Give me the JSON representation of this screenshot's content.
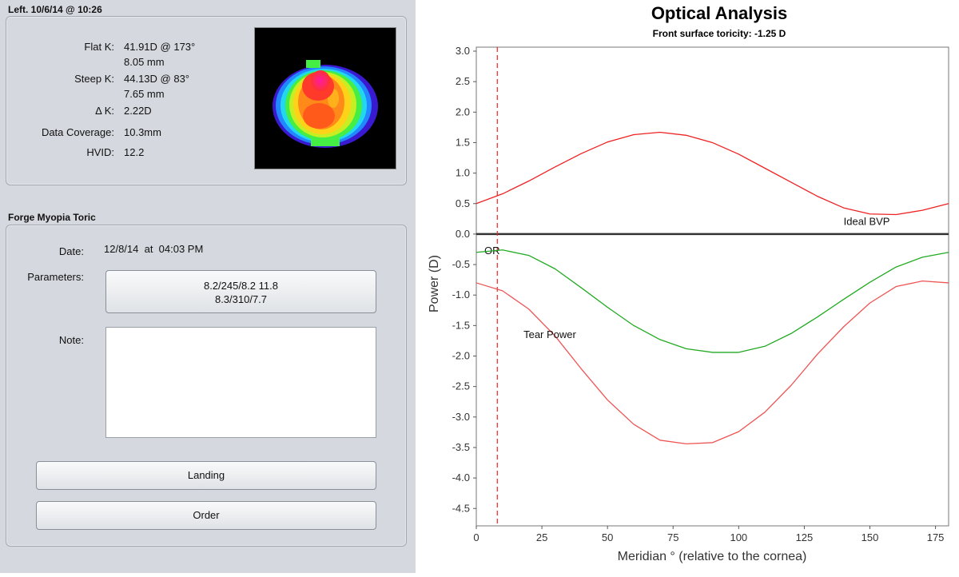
{
  "keratometry": {
    "title": "Left. 10/6/14 @ 10:26",
    "flat_k_label": "Flat K:",
    "flat_k_value": "41.91D @ 173°",
    "flat_k_mm": "8.05 mm",
    "steep_k_label": "Steep K:",
    "steep_k_value": "44.13D @ 83°",
    "steep_k_mm": "7.65 mm",
    "delta_k_label": "Δ K:",
    "delta_k_value": "2.22D",
    "coverage_label": "Data Coverage:",
    "coverage_value": "10.3mm",
    "hvid_label": "HVID:",
    "hvid_value": "12.2"
  },
  "lens": {
    "title": "Forge Myopia Toric",
    "date_label": "Date:",
    "date_value": "12/8/14  at  04:03 PM",
    "parameters_label": "Parameters:",
    "parameters_line1": "8.2/245/8.2 11.8",
    "parameters_line2": "8.3/310/7.7",
    "note_label": "Note:",
    "note_value": "",
    "landing_button": "Landing",
    "order_button": "Order"
  },
  "chart_data": {
    "type": "line",
    "title": "Optical Analysis",
    "subtitle": "Front surface toricity: -1.25 D",
    "xlabel": "Meridian ° (relative to the cornea)",
    "ylabel": "Power (D)",
    "xlim": [
      0,
      180
    ],
    "ylim": [
      -4.75,
      3.0
    ],
    "xticks": [
      0,
      25,
      50,
      75,
      100,
      125,
      150,
      175
    ],
    "yticks": [
      3.0,
      2.5,
      2.0,
      1.5,
      1.0,
      0.5,
      0.0,
      -0.5,
      -1.0,
      -1.5,
      -2.0,
      -2.5,
      -3.0,
      -3.5,
      -4.0,
      -4.5
    ],
    "grid": false,
    "or_meridian": 8,
    "or_label": "OR",
    "series": [
      {
        "name": "Ideal BVP",
        "color": "#ee2222",
        "x": [
          0,
          10,
          20,
          30,
          40,
          50,
          60,
          70,
          80,
          90,
          100,
          110,
          120,
          130,
          140,
          150,
          160,
          170,
          180
        ],
        "y": [
          0.5,
          0.66,
          0.87,
          1.1,
          1.32,
          1.51,
          1.63,
          1.67,
          1.62,
          1.5,
          1.31,
          1.08,
          0.85,
          0.62,
          0.43,
          0.33,
          0.32,
          0.39,
          0.5
        ]
      },
      {
        "name": "",
        "color": "#22aa22",
        "x": [
          0,
          10,
          20,
          30,
          40,
          50,
          60,
          70,
          80,
          90,
          100,
          110,
          120,
          130,
          140,
          150,
          160,
          170,
          180
        ],
        "y": [
          -0.3,
          -0.26,
          -0.35,
          -0.57,
          -0.88,
          -1.2,
          -1.5,
          -1.73,
          -1.88,
          -1.94,
          -1.94,
          -1.84,
          -1.63,
          -1.36,
          -1.07,
          -0.79,
          -0.54,
          -0.38,
          -0.3
        ]
      },
      {
        "name": "Tear Power",
        "color": "#ee5555",
        "x": [
          0,
          10,
          20,
          30,
          40,
          50,
          60,
          70,
          80,
          90,
          100,
          110,
          120,
          130,
          140,
          150,
          160,
          170,
          180
        ],
        "y": [
          -0.8,
          -0.93,
          -1.23,
          -1.67,
          -2.21,
          -2.72,
          -3.12,
          -3.38,
          -3.44,
          -3.42,
          -3.24,
          -2.92,
          -2.48,
          -1.97,
          -1.52,
          -1.13,
          -0.86,
          -0.77,
          -0.8
        ]
      }
    ]
  }
}
